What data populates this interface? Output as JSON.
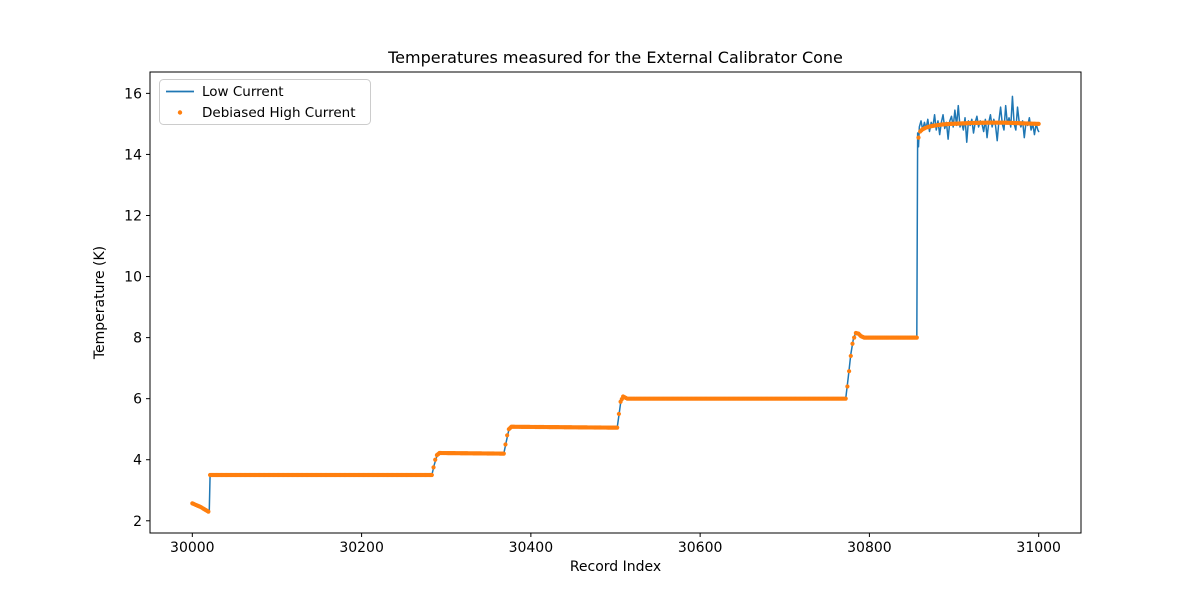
{
  "chart_data": {
    "type": "line",
    "title": "Temperatures measured for the External Calibrator Cone",
    "xlabel": "Record Index",
    "ylabel": "Temperature (K)",
    "xlim": [
      29950,
      31050
    ],
    "ylim": [
      1.6,
      16.7
    ],
    "xticks": [
      30000,
      30200,
      30400,
      30600,
      30800,
      31000
    ],
    "yticks": [
      2,
      4,
      6,
      8,
      10,
      12,
      14,
      16
    ],
    "grid": false,
    "background": "#ffffff",
    "spine_color": "#000000",
    "legend": {
      "position": "upper left",
      "entries": [
        {
          "label": "Low Current",
          "color": "#1f77b4",
          "marker": "line"
        },
        {
          "label": "Debiased High Current",
          "color": "#ff7f0e",
          "marker": "dot"
        }
      ]
    },
    "series": [
      {
        "name": "Low Current",
        "color": "#1f77b4",
        "style": "line",
        "linewidth": 1.5,
        "segments": [
          [
            [
              30000,
              2.55
            ],
            [
              30006,
              2.47
            ],
            [
              30012,
              2.39
            ],
            [
              30018,
              2.31
            ],
            [
              30020,
              2.28
            ],
            [
              30021,
              3.5
            ],
            [
              30283,
              3.5
            ],
            [
              30286,
              3.85
            ],
            [
              30289,
              4.12
            ],
            [
              30292,
              4.22
            ],
            [
              30368,
              4.2
            ],
            [
              30371,
              4.6
            ],
            [
              30374,
              4.98
            ],
            [
              30377,
              5.08
            ],
            [
              30502,
              5.05
            ],
            [
              30504,
              5.45
            ],
            [
              30506,
              5.85
            ],
            [
              30508,
              6.03
            ],
            [
              30511,
              6.07
            ],
            [
              30516,
              6.0
            ],
            [
              30772,
              6.0
            ],
            [
              30775,
              6.7
            ],
            [
              30778,
              7.45
            ],
            [
              30781,
              7.95
            ],
            [
              30784,
              8.17
            ],
            [
              30788,
              8.1
            ],
            [
              30794,
              8.02
            ],
            [
              30820,
              8.03
            ],
            [
              30840,
              8.0
            ],
            [
              30856,
              8.0
            ],
            [
              30857,
              14.7
            ],
            [
              30858,
              14.25
            ],
            [
              30859,
              14.9
            ],
            [
              30861,
              15.1
            ],
            [
              30863,
              14.8
            ],
            [
              30865,
              15.05
            ],
            [
              30867,
              14.85
            ],
            [
              30869,
              15.15
            ],
            [
              30871,
              14.75
            ],
            [
              30873,
              15.05
            ],
            [
              30875,
              14.9
            ],
            [
              30877,
              15.3
            ],
            [
              30879,
              14.8
            ],
            [
              30881,
              15.1
            ],
            [
              30883,
              14.65
            ],
            [
              30885,
              15.05
            ],
            [
              30887,
              15.3
            ],
            [
              30889,
              14.85
            ],
            [
              30891,
              15.05
            ],
            [
              30893,
              14.5
            ],
            [
              30895,
              15.1
            ],
            [
              30897,
              15.25
            ],
            [
              30899,
              14.9
            ],
            [
              30901,
              15.45
            ],
            [
              30903,
              14.95
            ],
            [
              30905,
              15.6
            ],
            [
              30907,
              14.9
            ],
            [
              30909,
              15.05
            ],
            [
              30911,
              14.8
            ],
            [
              30913,
              15.2
            ],
            [
              30915,
              14.4
            ],
            [
              30917,
              15.1
            ],
            [
              30919,
              14.95
            ],
            [
              30921,
              15.15
            ],
            [
              30923,
              14.7
            ],
            [
              30925,
              15.05
            ],
            [
              30927,
              15.25
            ],
            [
              30929,
              14.9
            ],
            [
              30931,
              15.1
            ],
            [
              30933,
              15.0
            ],
            [
              30935,
              14.75
            ],
            [
              30937,
              15.15
            ],
            [
              30939,
              14.55
            ],
            [
              30941,
              15.05
            ],
            [
              30943,
              15.3
            ],
            [
              30945,
              14.9
            ],
            [
              30947,
              15.15
            ],
            [
              30949,
              14.95
            ],
            [
              30951,
              14.45
            ],
            [
              30953,
              15.1
            ],
            [
              30955,
              15.55
            ],
            [
              30957,
              15.0
            ],
            [
              30959,
              14.8
            ],
            [
              30961,
              15.6
            ],
            [
              30963,
              15.0
            ],
            [
              30965,
              15.2
            ],
            [
              30967,
              14.9
            ],
            [
              30969,
              15.9
            ],
            [
              30971,
              15.0
            ],
            [
              30973,
              14.8
            ],
            [
              30975,
              15.55
            ],
            [
              30977,
              15.05
            ],
            [
              30979,
              14.9
            ],
            [
              30981,
              15.1
            ],
            [
              30983,
              14.55
            ],
            [
              30985,
              15.05
            ],
            [
              30987,
              14.95
            ],
            [
              30989,
              15.2
            ],
            [
              30991,
              14.8
            ],
            [
              30993,
              15.0
            ],
            [
              30995,
              14.65
            ],
            [
              30997,
              15.0
            ],
            [
              30999,
              14.8
            ],
            [
              31000,
              14.75
            ]
          ]
        ]
      },
      {
        "name": "Debiased High Current",
        "color": "#ff7f0e",
        "style": "dots",
        "marker_radius": 2.1,
        "marker_step": 1.5,
        "segments": [
          [
            [
              30000,
              2.57
            ],
            [
              30010,
              2.45
            ],
            [
              30019,
              2.3
            ]
          ],
          [
            [
              30021,
              3.5
            ],
            [
              30283,
              3.5
            ],
            [
              30285,
              3.75
            ],
            [
              30287,
              4.0
            ],
            [
              30289,
              4.15
            ],
            [
              30292,
              4.22
            ],
            [
              30368,
              4.2
            ],
            [
              30370,
              4.5
            ],
            [
              30372,
              4.8
            ],
            [
              30374,
              5.0
            ],
            [
              30377,
              5.08
            ],
            [
              30502,
              5.05
            ],
            [
              30504,
              5.5
            ],
            [
              30506,
              5.9
            ],
            [
              30509,
              6.07
            ],
            [
              30514,
              6.0
            ],
            [
              30772,
              6.0
            ],
            [
              30774,
              6.4
            ],
            [
              30776,
              6.9
            ],
            [
              30778,
              7.4
            ],
            [
              30780,
              7.8
            ],
            [
              30782,
              8.0
            ],
            [
              30784,
              8.15
            ],
            [
              30787,
              8.13
            ],
            [
              30790,
              8.05
            ],
            [
              30794,
              8.0
            ],
            [
              30856,
              8.0
            ]
          ],
          [
            [
              30858,
              14.55
            ],
            [
              30860,
              14.75
            ],
            [
              30863,
              14.83
            ],
            [
              30867,
              14.88
            ],
            [
              30872,
              14.92
            ],
            [
              30878,
              14.95
            ],
            [
              30886,
              14.98
            ],
            [
              30895,
              15.0
            ],
            [
              30905,
              15.01
            ],
            [
              30920,
              15.03
            ],
            [
              30940,
              15.04
            ],
            [
              30960,
              15.04
            ],
            [
              30980,
              15.02
            ],
            [
              31000,
              15.0
            ]
          ]
        ]
      }
    ]
  }
}
